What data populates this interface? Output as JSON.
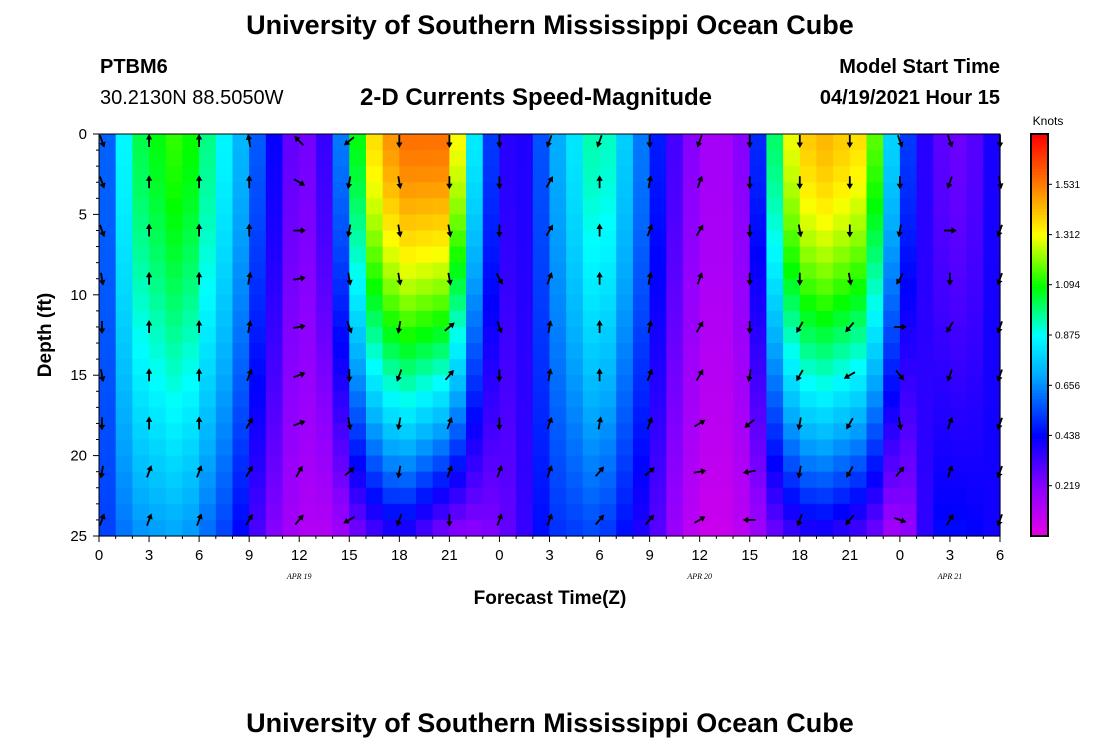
{
  "page": {
    "title_top": "University of Southern Mississippi Ocean Cube",
    "title_bottom": "University of Southern Mississippi Ocean Cube"
  },
  "header": {
    "station": "PTBM6",
    "coords": "30.2130N  88.5050W",
    "plot_title": "2-D Currents Speed-Magnitude",
    "model_label": "Model Start Time",
    "model_time": "04/19/2021 Hour 15"
  },
  "chart_data": {
    "type": "heatmap",
    "title": "2-D Currents Speed-Magnitude",
    "xlabel": "Forecast Time(Z)",
    "ylabel": "Depth (ft)",
    "x_tick_labels": [
      "0",
      "3",
      "6",
      "9",
      "12",
      "15",
      "18",
      "21",
      "0",
      "3",
      "6",
      "9",
      "12",
      "15",
      "18",
      "21",
      "0",
      "3",
      "6"
    ],
    "x_hours": [
      0,
      3,
      6,
      9,
      12,
      15,
      18,
      21,
      24,
      27,
      30,
      33,
      36,
      39,
      42,
      45,
      48,
      51,
      54
    ],
    "xlim": [
      0,
      54
    ],
    "date_labels": [
      {
        "text": "APR 19",
        "hour": 12
      },
      {
        "text": "APR 20",
        "hour": 36
      },
      {
        "text": "APR 21",
        "hour": 51
      }
    ],
    "y_ticks": [
      0,
      5,
      10,
      15,
      20,
      25
    ],
    "ylim": [
      0,
      25
    ],
    "colorbar": {
      "unit": "Knots",
      "tick_labels": [
        "1.531",
        "1.312",
        "1.094",
        "0.875",
        "0.656",
        "0.438",
        "0.219"
      ],
      "tick_values": [
        1.531,
        1.312,
        1.094,
        0.875,
        0.656,
        0.438,
        0.219
      ],
      "range": [
        0,
        1.75
      ]
    },
    "speed_profiles": [
      {
        "hour": 0,
        "top": 0.45,
        "bottom": 0.5
      },
      {
        "hour": 2,
        "top": 1.0,
        "bottom": 0.65
      },
      {
        "hour": 5,
        "top": 1.15,
        "bottom": 0.7
      },
      {
        "hour": 8,
        "top": 0.8,
        "bottom": 0.5
      },
      {
        "hour": 10,
        "top": 0.5,
        "bottom": 0.25
      },
      {
        "hour": 12,
        "top": 0.2,
        "bottom": 0.12
      },
      {
        "hour": 14,
        "top": 0.4,
        "bottom": 0.12
      },
      {
        "hour": 16,
        "top": 1.3,
        "bottom": 0.28
      },
      {
        "hour": 18,
        "top": 1.55,
        "bottom": 0.4
      },
      {
        "hour": 21,
        "top": 1.55,
        "bottom": 0.2
      },
      {
        "hour": 23,
        "top": 0.6,
        "bottom": 0.2
      },
      {
        "hour": 25,
        "top": 0.3,
        "bottom": 0.3
      },
      {
        "hour": 27,
        "top": 0.65,
        "bottom": 0.5
      },
      {
        "hour": 30,
        "top": 1.0,
        "bottom": 0.55
      },
      {
        "hour": 33,
        "top": 0.55,
        "bottom": 0.35
      },
      {
        "hour": 35,
        "top": 0.25,
        "bottom": 0.12
      },
      {
        "hour": 37,
        "top": 0.12,
        "bottom": 0.05
      },
      {
        "hour": 39,
        "top": 0.25,
        "bottom": 0.12
      },
      {
        "hour": 41,
        "top": 1.25,
        "bottom": 0.3
      },
      {
        "hour": 43,
        "top": 1.45,
        "bottom": 0.4
      },
      {
        "hour": 46,
        "top": 1.35,
        "bottom": 0.3
      },
      {
        "hour": 48,
        "top": 0.6,
        "bottom": 0.1
      },
      {
        "hour": 50,
        "top": 0.3,
        "bottom": 0.45
      },
      {
        "hour": 52,
        "top": 0.25,
        "bottom": 0.45
      },
      {
        "hour": 54,
        "top": 0.45,
        "bottom": 0.4
      }
    ],
    "arrow_columns_hours": [
      0,
      3,
      6,
      9,
      12,
      15,
      18,
      21,
      24,
      27,
      30,
      33,
      36,
      39,
      42,
      45,
      48,
      51,
      54
    ],
    "arrow_rows_depth": [
      0,
      3,
      6,
      9,
      12,
      15,
      18,
      21,
      24
    ],
    "arrow_directions_deg": [
      [
        160,
        0,
        0,
        350,
        315,
        230,
        180,
        180,
        180,
        200,
        200,
        180,
        200,
        180,
        180,
        180,
        160,
        160,
        180
      ],
      [
        160,
        0,
        0,
        0,
        120,
        190,
        170,
        180,
        180,
        30,
        0,
        10,
        20,
        180,
        180,
        180,
        180,
        200,
        170
      ],
      [
        160,
        0,
        0,
        0,
        90,
        190,
        170,
        170,
        180,
        30,
        0,
        20,
        30,
        180,
        170,
        180,
        190,
        90,
        200
      ],
      [
        170,
        0,
        0,
        10,
        80,
        170,
        170,
        170,
        150,
        20,
        0,
        10,
        20,
        180,
        180,
        170,
        210,
        180,
        200
      ],
      [
        180,
        0,
        0,
        10,
        80,
        160,
        190,
        50,
        160,
        10,
        0,
        10,
        30,
        180,
        210,
        220,
        90,
        210,
        200
      ],
      [
        170,
        0,
        0,
        20,
        70,
        180,
        200,
        40,
        180,
        10,
        0,
        20,
        30,
        190,
        210,
        240,
        140,
        200,
        200
      ],
      [
        180,
        0,
        0,
        30,
        70,
        170,
        190,
        20,
        180,
        20,
        10,
        20,
        60,
        230,
        190,
        210,
        170,
        20,
        200
      ],
      [
        190,
        20,
        20,
        30,
        30,
        50,
        190,
        20,
        20,
        20,
        40,
        50,
        80,
        260,
        190,
        210,
        40,
        20,
        200
      ],
      [
        20,
        20,
        20,
        30,
        40,
        240,
        200,
        180,
        20,
        20,
        40,
        40,
        60,
        270,
        200,
        220,
        110,
        30,
        200
      ]
    ]
  }
}
